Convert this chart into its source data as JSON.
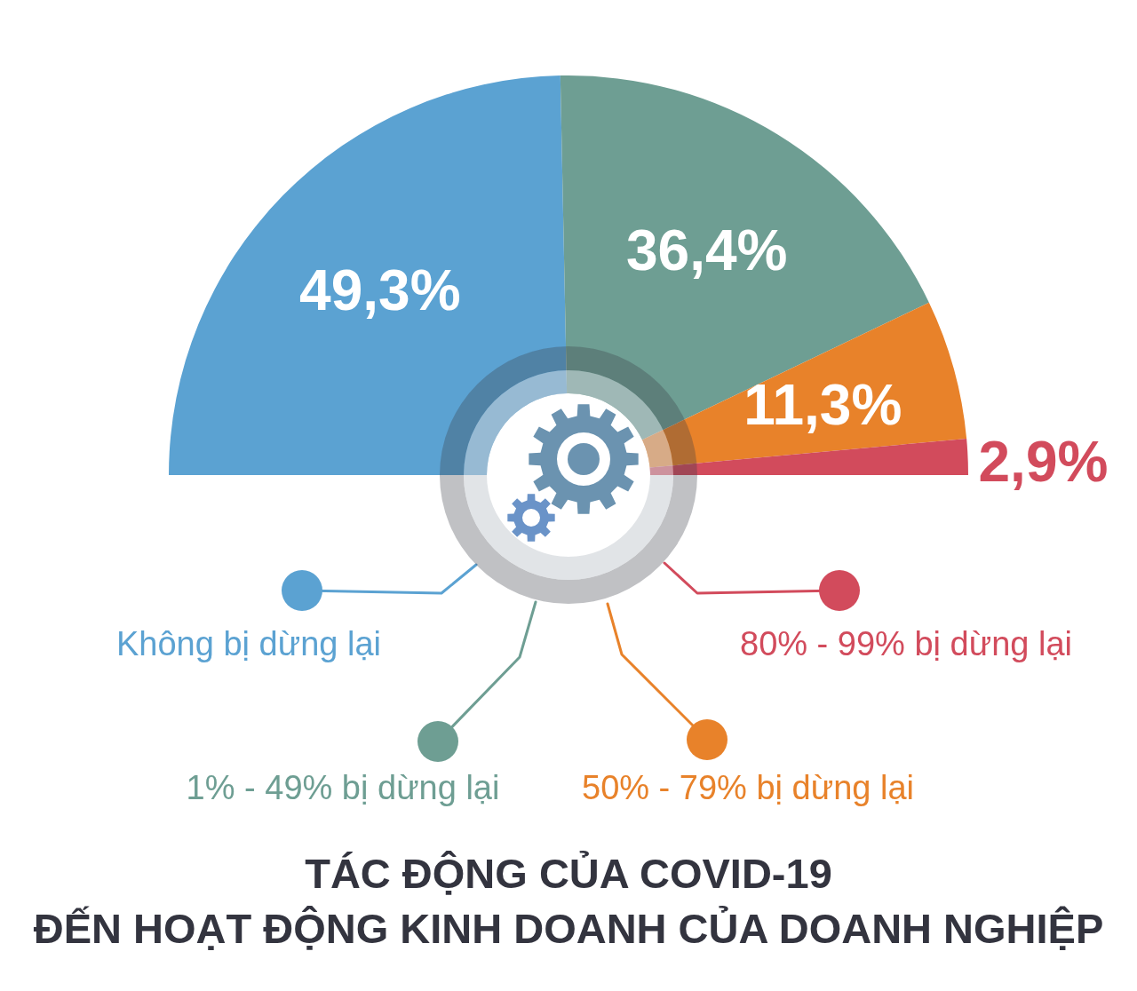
{
  "chart_data": {
    "type": "donut",
    "title": "TÁC ĐỘNG CỦA COVID-19\nĐẾN HOẠT ĐỘNG KINH DOANH CỦA DOANH NGHIỆP",
    "categories": [
      "Không bị dừng lại",
      "1% - 49% bị dừng lại",
      "50% - 79% bị dừng lại",
      "80% - 99% bị dừng lại"
    ],
    "values": [
      49.3,
      36.4,
      11.3,
      2.9
    ],
    "value_labels": [
      "49,3%",
      "36,4%",
      "11,3%",
      "2,9%"
    ],
    "colors": [
      "#5ba2d2",
      "#6e9e93",
      "#e8822a",
      "#d24b5c"
    ],
    "legend": "bottom"
  }
}
